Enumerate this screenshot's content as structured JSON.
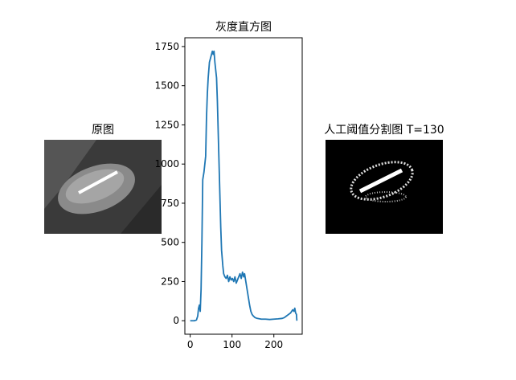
{
  "images": [
    {
      "title": "原图"
    },
    {
      "title": "人工阈值分割图 T=130"
    }
  ],
  "chart_data": {
    "type": "line",
    "title": "灰度直方图",
    "x": [
      0,
      10,
      15,
      18,
      20,
      22,
      24,
      26,
      28,
      30,
      33,
      35,
      37,
      39,
      41,
      43,
      46,
      50,
      53,
      55,
      57,
      59,
      61,
      63,
      65,
      67,
      69,
      71,
      73,
      75,
      78,
      80,
      83,
      86,
      89,
      92,
      95,
      98,
      101,
      104,
      107,
      110,
      113,
      116,
      119,
      122,
      125,
      128,
      130,
      133,
      136,
      139,
      142,
      145,
      148,
      151,
      155,
      160,
      170,
      180,
      190,
      200,
      210,
      220,
      225,
      230,
      235,
      240,
      245,
      248,
      250,
      252,
      254,
      255
    ],
    "series": [
      {
        "name": "histogram",
        "color": "#1f77b4",
        "values": [
          0,
          0,
          5,
          30,
          80,
          100,
          60,
          200,
          500,
          900,
          950,
          1000,
          1050,
          1300,
          1450,
          1550,
          1650,
          1690,
          1720,
          1700,
          1720,
          1650,
          1600,
          1550,
          1400,
          1200,
          1000,
          800,
          600,
          450,
          350,
          300,
          280,
          270,
          290,
          250,
          280,
          260,
          270,
          250,
          280,
          240,
          260,
          280,
          300,
          270,
          310,
          280,
          300,
          250,
          200,
          150,
          100,
          60,
          40,
          30,
          20,
          15,
          10,
          10,
          8,
          10,
          12,
          15,
          20,
          30,
          40,
          50,
          70,
          60,
          80,
          50,
          40,
          0
        ]
      }
    ],
    "xlim": [
      -12.75,
      267.75
    ],
    "ylim": [
      -86,
      1806
    ],
    "xticks": [
      0,
      100,
      200
    ],
    "yticks": [
      0,
      250,
      500,
      750,
      1000,
      1250,
      1500,
      1750
    ]
  }
}
